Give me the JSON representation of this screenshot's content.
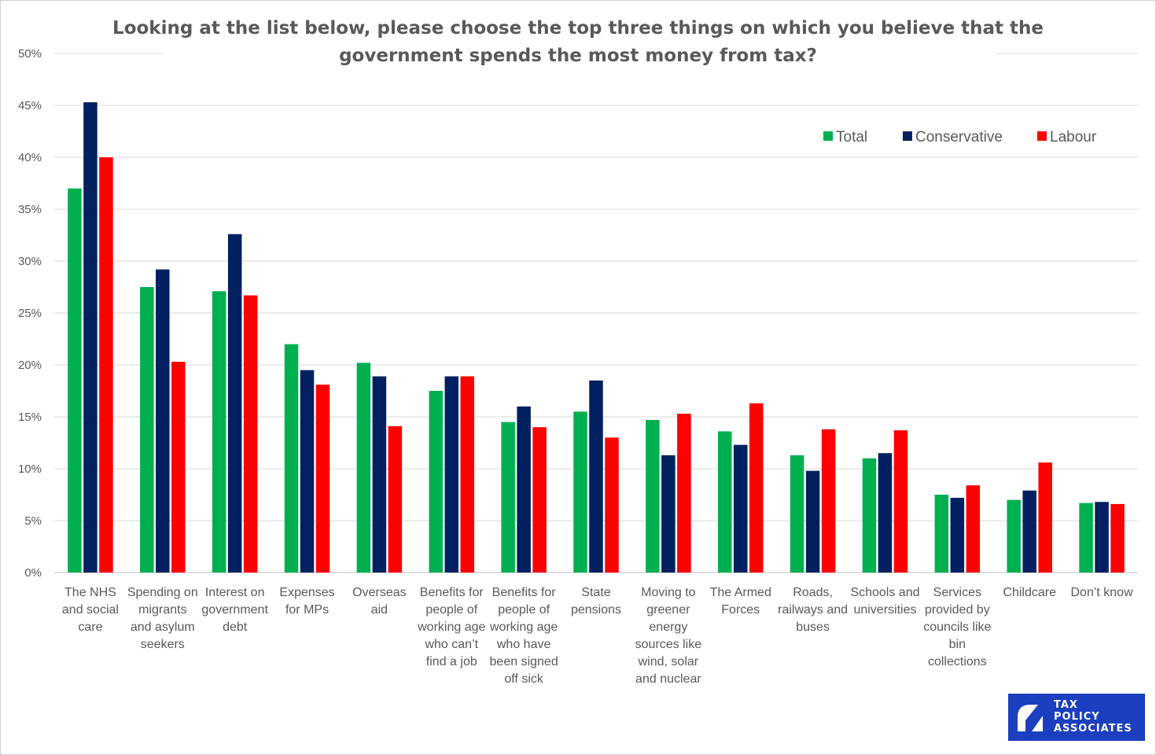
{
  "chart_data": {
    "type": "bar",
    "title_lines": [
      "Looking at the list below, please choose the top three things on which you believe that the",
      "government spends the most money from tax?"
    ],
    "ylim": [
      0,
      50
    ],
    "y_ticks": [
      "0%",
      "5%",
      "10%",
      "15%",
      "20%",
      "25%",
      "30%",
      "35%",
      "40%",
      "45%",
      "50%"
    ],
    "grid": true,
    "legend_position": "top-right",
    "categories": [
      [
        "The NHS",
        "and social",
        "care"
      ],
      [
        "Spending on",
        "migrants",
        "and asylum",
        "seekers"
      ],
      [
        "Interest on",
        "government",
        "debt"
      ],
      [
        "Expenses",
        "for MPs"
      ],
      [
        "Overseas",
        "aid"
      ],
      [
        "Benefits for",
        "people of",
        "working age",
        "who can’t",
        "find a job"
      ],
      [
        "Benefits for",
        "people of",
        "working age",
        "who have",
        "been signed",
        "off sick"
      ],
      [
        "State",
        "pensions"
      ],
      [
        "Moving to",
        "greener",
        "energy",
        "sources like",
        "wind, solar",
        "and nuclear"
      ],
      [
        "The Armed",
        "Forces"
      ],
      [
        "Roads,",
        "railways and",
        "buses"
      ],
      [
        "Schools and",
        "universities"
      ],
      [
        "Services",
        "provided by",
        "councils like",
        "bin",
        "collections"
      ],
      [
        "Childcare"
      ],
      [
        "Don’t know"
      ]
    ],
    "series": [
      {
        "name": "Total",
        "color": "#00b050",
        "values": [
          37.0,
          27.5,
          27.1,
          22.0,
          20.2,
          17.5,
          14.5,
          15.5,
          14.7,
          13.6,
          11.3,
          11.0,
          7.5,
          7.0,
          6.7
        ]
      },
      {
        "name": "Conservative",
        "color": "#002060",
        "values": [
          45.3,
          29.2,
          32.6,
          19.5,
          18.9,
          18.9,
          16.0,
          18.5,
          11.3,
          12.3,
          9.8,
          11.5,
          7.2,
          7.9,
          6.8
        ]
      },
      {
        "name": "Labour",
        "color": "#ff0000",
        "values": [
          40.0,
          20.3,
          26.7,
          18.1,
          14.1,
          18.9,
          14.0,
          13.0,
          15.3,
          16.3,
          13.8,
          13.7,
          8.4,
          10.6,
          6.6
        ]
      }
    ]
  },
  "logo": {
    "lines": [
      "TAX",
      "POLICY",
      "ASSOCIATES"
    ],
    "color": "#1b3fbe"
  }
}
